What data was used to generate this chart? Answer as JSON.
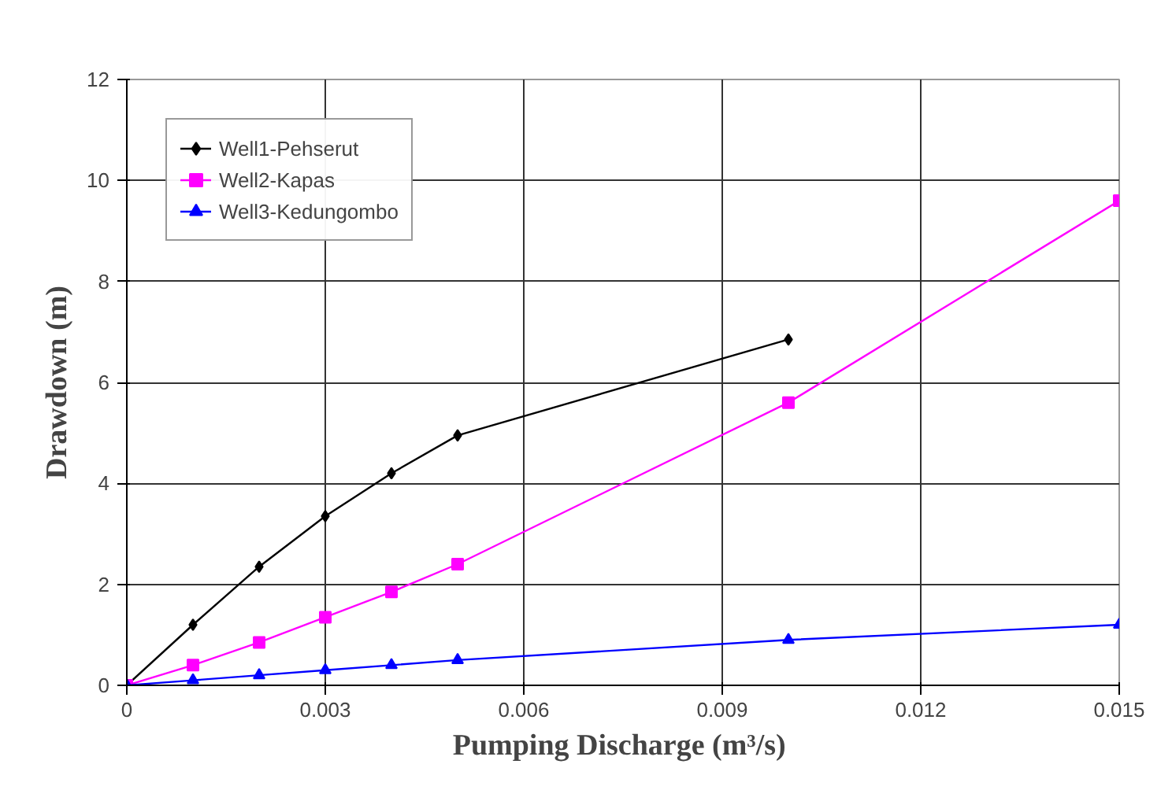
{
  "chart_data": {
    "type": "line",
    "xlabel": "Pumping Discharge  (m³/s)",
    "ylabel": "Drawdown (m)",
    "xlim": [
      0,
      0.015
    ],
    "xticks": [
      0,
      0.003,
      0.006,
      0.009,
      0.012,
      0.015
    ],
    "ylim": [
      0,
      12
    ],
    "yticks": [
      0,
      2,
      4,
      6,
      8,
      10,
      12
    ],
    "grid": true,
    "legend": "top left",
    "series": [
      {
        "name": "Well1-Pehserut",
        "color": "#000000",
        "marker": "diamond",
        "x": [
          0,
          0.001,
          0.002,
          0.003,
          0.004,
          0.005,
          0.01
        ],
        "values": [
          0,
          1.2,
          2.35,
          3.35,
          4.2,
          4.95,
          6.85
        ]
      },
      {
        "name": "Well2-Kapas",
        "color": "#ff00ff",
        "marker": "square",
        "x": [
          0,
          0.001,
          0.002,
          0.003,
          0.004,
          0.005,
          0.01,
          0.015
        ],
        "values": [
          0,
          0.4,
          0.85,
          1.35,
          1.85,
          2.4,
          5.6,
          9.6
        ]
      },
      {
        "name": "Well3-Kedungombo",
        "color": "#0000ff",
        "marker": "triangle",
        "x": [
          0,
          0.001,
          0.002,
          0.003,
          0.004,
          0.005,
          0.01,
          0.015
        ],
        "values": [
          0,
          0.1,
          0.2,
          0.3,
          0.4,
          0.5,
          0.9,
          1.2
        ]
      }
    ]
  }
}
